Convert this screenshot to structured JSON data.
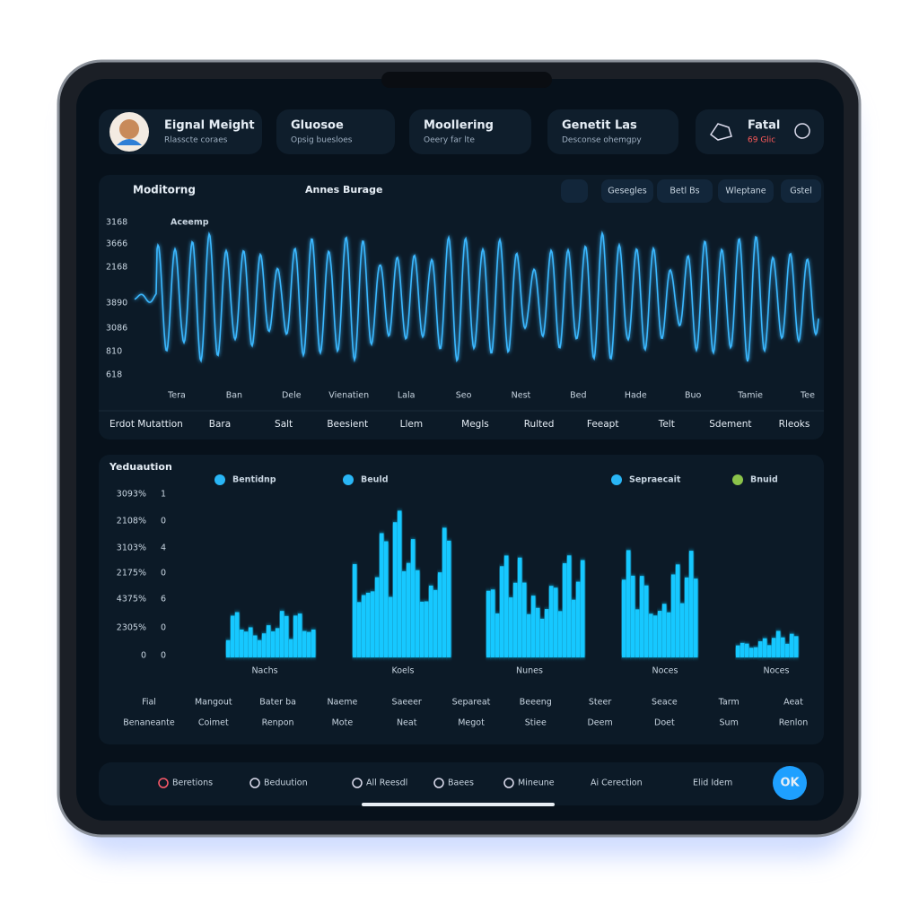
{
  "header": {
    "cards": [
      {
        "title": "Eignal Meight",
        "subtitle": "Rlasscte coraes"
      },
      {
        "title": "Gluosoe",
        "subtitle": "Opsig buesloes"
      },
      {
        "title": "Moollering",
        "subtitle": "Oeery far lte"
      },
      {
        "title": "Genetit Las",
        "subtitle": "Desconse ohemgpy"
      },
      {
        "title": "Fatal",
        "subtitle": "69 Glic"
      }
    ]
  },
  "monitor": {
    "title": "Moditorng",
    "subtitle": "Annes Burage",
    "tabs": [
      "Gesegles",
      "Betl Bs",
      "Wleptane",
      "Gstel"
    ],
    "legend": "Aceemp",
    "y_labels": [
      "3168",
      "3666",
      "2168",
      "3890",
      "3086",
      "810",
      "618"
    ],
    "x_labels": [
      "Tera",
      "Ban",
      "Dele",
      "Vienatien",
      "Lala",
      "Seo",
      "Nest",
      "Bed",
      "Hade",
      "Buo",
      "Tamie",
      "Tee"
    ],
    "row": [
      "Erdot Mutattion",
      "Bara",
      "Salt",
      "Beesient",
      "Llem",
      "Megls",
      "Rulted",
      "Feeapt",
      "Telt",
      "Sdement",
      "Rleoks"
    ]
  },
  "evaluation": {
    "title": "Yeduaution",
    "legend": [
      "Bentidnp",
      "Beuld",
      "Sepraecait",
      "Bnuid"
    ],
    "y_labels": [
      [
        "3093%",
        "1"
      ],
      [
        "2108%",
        "0"
      ],
      [
        "3103%",
        "4"
      ],
      [
        "2175%",
        "0"
      ],
      [
        "4375%",
        "6"
      ],
      [
        "2305%",
        "0"
      ],
      [
        "0",
        "0"
      ]
    ],
    "x_labels": [
      "Nachs",
      "Koels",
      "Nunes",
      "Noces",
      "Noces"
    ],
    "rows": [
      [
        "Fial",
        "Mangout",
        "Bater ba",
        "Naeme",
        "Saeeer",
        "Separeat",
        "Beeeng",
        "Steer",
        "Seace",
        "Tarm",
        "Aeat"
      ],
      [
        "Benaneante",
        "Coimet",
        "Renpon",
        "Mote",
        "Neat",
        "Megot",
        "Stiee",
        "Deem",
        "Doet",
        "Sum",
        "Renlon"
      ]
    ]
  },
  "nav": {
    "items": [
      "Beretions",
      "Beduution",
      "All Reesdl",
      "Baees",
      "Mineune",
      "Ai Cerection",
      "Elid Idem"
    ],
    "button": "OK"
  }
}
